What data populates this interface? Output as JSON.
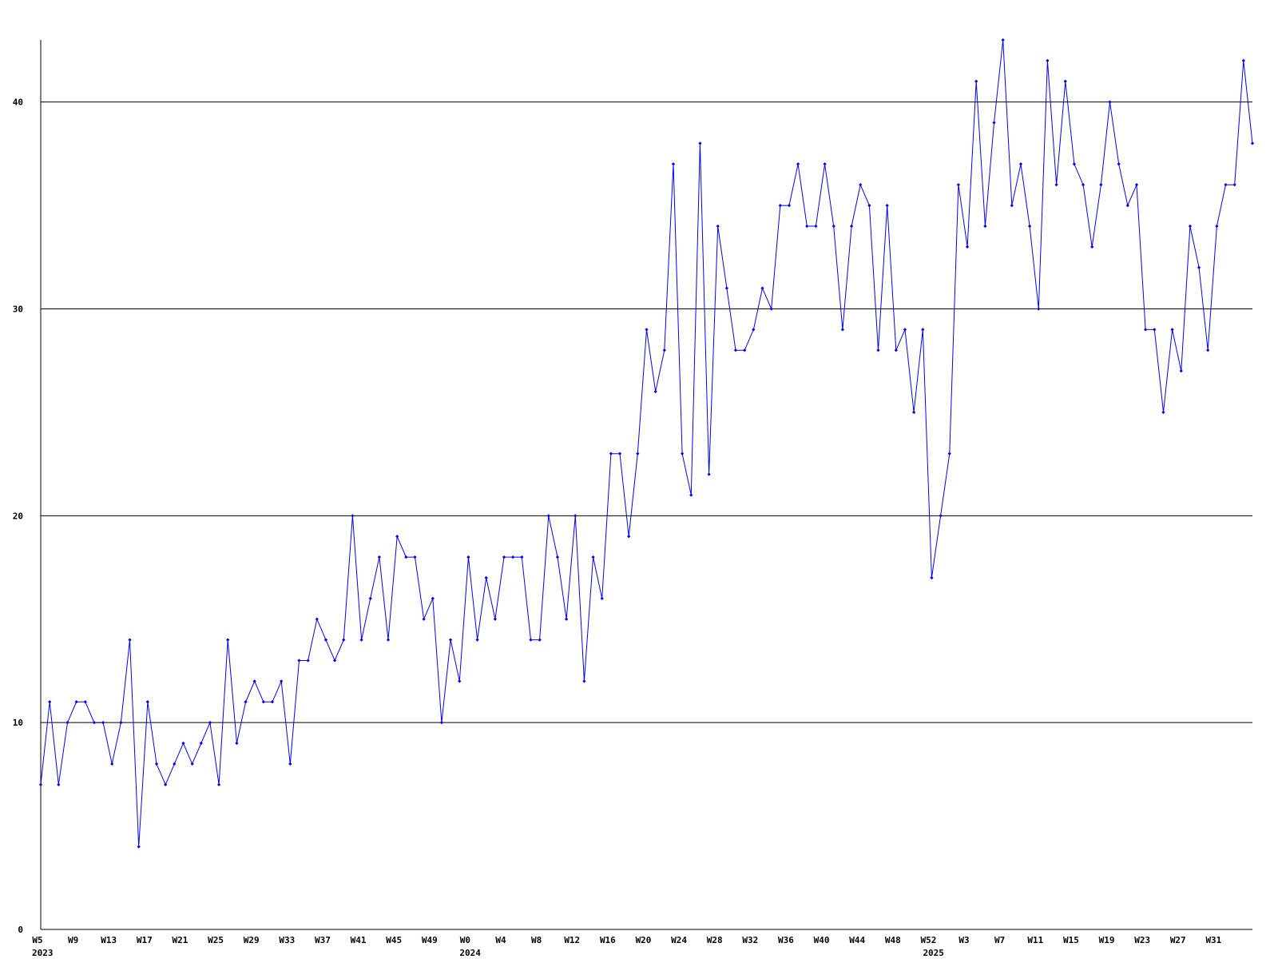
{
  "chart_data": {
    "type": "line",
    "categories": [
      "W5",
      null,
      null,
      null,
      "W9",
      null,
      null,
      null,
      "W13",
      null,
      null,
      null,
      "W17",
      null,
      null,
      null,
      "W21",
      null,
      null,
      null,
      "W25",
      null,
      null,
      null,
      "W29",
      null,
      null,
      null,
      "W33",
      null,
      null,
      null,
      "W37",
      null,
      null,
      null,
      "W41",
      null,
      null,
      null,
      "W45",
      null,
      null,
      null,
      "W49",
      null,
      null,
      null,
      "W0",
      null,
      null,
      null,
      "W4",
      null,
      null,
      null,
      "W8",
      null,
      null,
      null,
      "W12",
      null,
      null,
      null,
      "W16",
      null,
      null,
      null,
      "W20",
      null,
      null,
      null,
      "W24",
      null,
      null,
      null,
      "W28",
      null,
      null,
      null,
      "W32",
      null,
      null,
      null,
      "W36",
      null,
      null,
      null,
      "W40",
      null,
      null,
      null,
      "W44",
      null,
      null,
      null,
      "W48",
      null,
      null,
      null,
      "W52",
      null,
      null,
      null,
      "W3",
      null,
      null,
      null,
      "W7",
      null,
      null,
      null,
      "W11",
      null,
      null,
      null,
      "W15",
      null,
      null,
      null,
      "W19",
      null,
      null,
      null,
      "W23",
      null,
      null,
      null,
      "W27",
      null,
      null,
      null,
      "W31",
      null,
      null,
      null,
      null
    ],
    "category_years": [
      "2023",
      null,
      null,
      null,
      null,
      null,
      null,
      null,
      null,
      null,
      null,
      null,
      null,
      null,
      null,
      null,
      null,
      null,
      null,
      null,
      null,
      null,
      null,
      null,
      null,
      null,
      null,
      null,
      null,
      null,
      null,
      null,
      null,
      null,
      null,
      null,
      null,
      null,
      null,
      null,
      null,
      null,
      null,
      null,
      null,
      null,
      null,
      null,
      "2024",
      null,
      null,
      null,
      null,
      null,
      null,
      null,
      null,
      null,
      null,
      null,
      null,
      null,
      null,
      null,
      null,
      null,
      null,
      null,
      null,
      null,
      null,
      null,
      null,
      null,
      null,
      null,
      null,
      null,
      null,
      null,
      null,
      null,
      null,
      null,
      null,
      null,
      null,
      null,
      null,
      null,
      null,
      null,
      null,
      null,
      null,
      null,
      null,
      null,
      null,
      null,
      "2025",
      null,
      null,
      null,
      null,
      null,
      null,
      null,
      null,
      null,
      null,
      null,
      null,
      null,
      null,
      null,
      null,
      null,
      null,
      null,
      null,
      null,
      null,
      null,
      null,
      null,
      null,
      null,
      null,
      null,
      null,
      null,
      null,
      null,
      null,
      null,
      null
    ],
    "series": [
      {
        "color": "#0000ff",
        "values": [
          7,
          11,
          7,
          10,
          11,
          11,
          10,
          10,
          8,
          10,
          14,
          4,
          11,
          8,
          7,
          8,
          9,
          8,
          9,
          10,
          7,
          14,
          9,
          11,
          12,
          11,
          11,
          12,
          8,
          13,
          13,
          15,
          14,
          13,
          14,
          20,
          14,
          16,
          18,
          14,
          19,
          18,
          18,
          15,
          16,
          10,
          14,
          12,
          18,
          14,
          17,
          15,
          18,
          18,
          18,
          14,
          14,
          20,
          18,
          15,
          20,
          12,
          18,
          16,
          23,
          23,
          19,
          23,
          29,
          26,
          28,
          37,
          23,
          21,
          38,
          22,
          34,
          31,
          28,
          28,
          29,
          31,
          30,
          35,
          35,
          37,
          34,
          34,
          37,
          34,
          29,
          34,
          36,
          35,
          28,
          35,
          28,
          29,
          25,
          29,
          17,
          20,
          23,
          36,
          33,
          41,
          34,
          39,
          43,
          35,
          37,
          34,
          30,
          42,
          36,
          41,
          37,
          36,
          33,
          36,
          40,
          37,
          35,
          36,
          29,
          29,
          25,
          29,
          27,
          34,
          32,
          28,
          34,
          36,
          36,
          42,
          38
        ]
      }
    ],
    "ylim": [
      0,
      43
    ],
    "yticks": [
      0,
      10,
      20,
      30,
      40
    ],
    "grid": true
  }
}
